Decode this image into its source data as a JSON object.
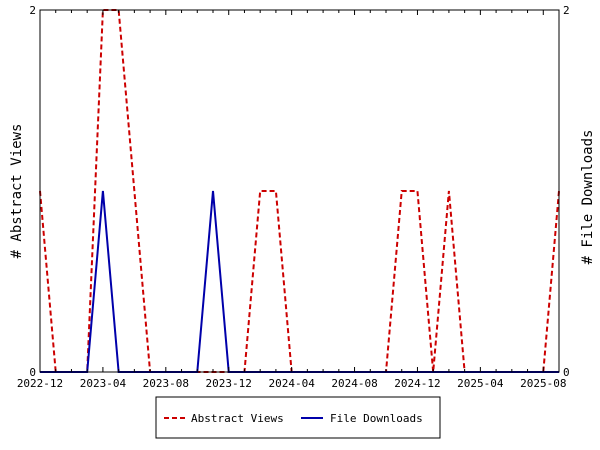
{
  "chart_data": {
    "type": "line",
    "ylabel_left": "# Abstract Views",
    "ylabel_right": "# File Downloads",
    "ylim": [
      0,
      2
    ],
    "y_ticks_left": [
      "0",
      "2"
    ],
    "y_ticks_right": [
      "0",
      "2"
    ],
    "x": [
      "2022-12",
      "2023-01",
      "2023-02",
      "2023-03",
      "2023-04",
      "2023-05",
      "2023-06",
      "2023-07",
      "2023-08",
      "2023-09",
      "2023-10",
      "2023-11",
      "2023-12",
      "2024-01",
      "2024-02",
      "2024-03",
      "2024-04",
      "2024-05",
      "2024-06",
      "2024-07",
      "2024-08",
      "2024-09",
      "2024-10",
      "2024-11",
      "2024-12",
      "2025-01",
      "2025-02",
      "2025-03",
      "2025-04",
      "2025-05",
      "2025-06",
      "2025-07",
      "2025-08",
      "2025-09"
    ],
    "x_tick_labels": [
      "2022-12",
      "2023-04",
      "2023-08",
      "2023-12",
      "2024-04",
      "2024-08",
      "2024-12",
      "2025-04",
      "2025-08"
    ],
    "series": [
      {
        "name": "Abstract Views",
        "color": "#cc0000",
        "dash": "dashed",
        "values": [
          1,
          0,
          0,
          0,
          2,
          2,
          1,
          0,
          0,
          0,
          0,
          0,
          0,
          0,
          1,
          1,
          0,
          0,
          0,
          0,
          0,
          0,
          0,
          1,
          1,
          0,
          1,
          0,
          0,
          0,
          0,
          0,
          0,
          1
        ]
      },
      {
        "name": "File Downloads",
        "color": "#0000aa",
        "dash": "solid",
        "values": [
          0,
          0,
          0,
          0,
          1,
          0,
          0,
          0,
          0,
          0,
          0,
          1,
          0,
          0,
          0,
          0,
          0,
          0,
          0,
          0,
          0,
          0,
          0,
          0,
          0,
          0,
          0,
          0,
          0,
          0,
          0,
          0,
          0,
          0
        ]
      }
    ]
  }
}
